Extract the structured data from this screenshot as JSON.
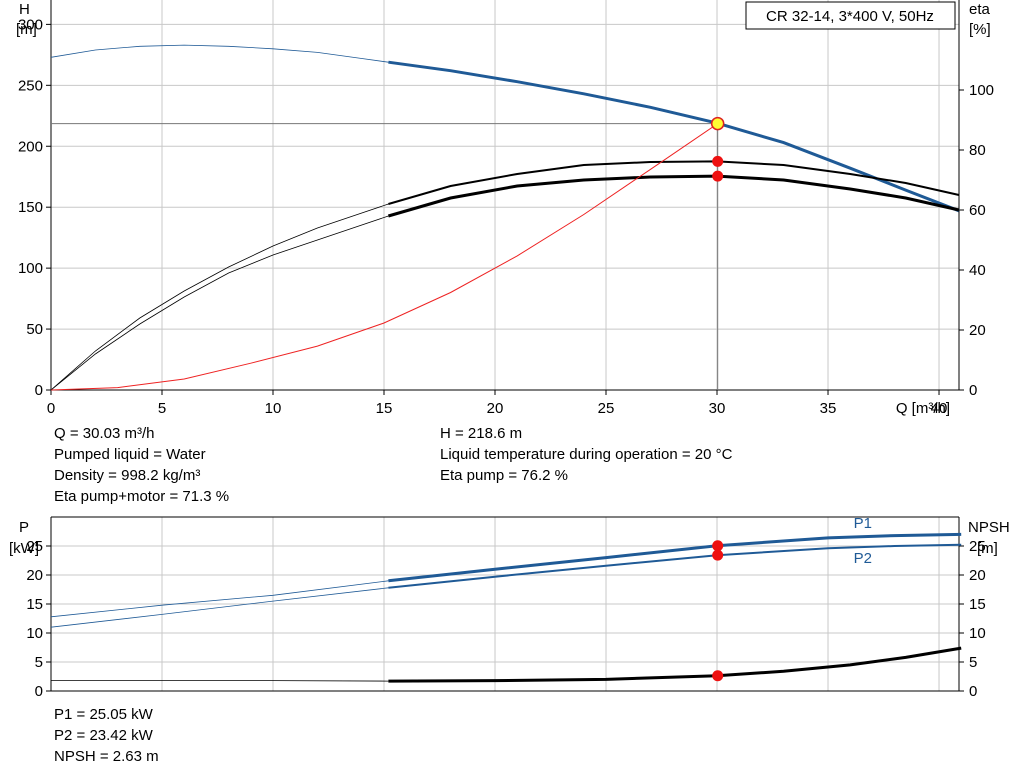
{
  "chart_data": [
    {
      "type": "line",
      "title": "CR 32-14, 3*400 V, 50Hz",
      "xlabel": "Q [m³/h]",
      "ylabel_left": [
        "H",
        "[m]"
      ],
      "ylabel_right": [
        "eta",
        "[%]"
      ],
      "xlim": [
        0,
        40.9
      ],
      "ylim_left": [
        0,
        320
      ],
      "ylim_right": [
        0,
        130
      ],
      "x_ticks": [
        "0",
        "5",
        "10",
        "15",
        "20",
        "25",
        "30",
        "35",
        "40"
      ],
      "y_left_ticks": [
        "0",
        "50",
        "100",
        "150",
        "200",
        "250",
        "300"
      ],
      "y_right_ticks": [
        "0",
        "20",
        "40",
        "60",
        "80",
        "100"
      ],
      "grid": true,
      "series": [
        {
          "key": "H",
          "axis": "left",
          "color": "#1f5a96",
          "x": [
            0,
            2,
            4,
            6,
            8,
            10,
            12,
            14,
            15.2,
            18,
            21,
            24,
            27,
            30,
            33,
            36,
            38.5,
            40.9
          ],
          "y": [
            273,
            279,
            282,
            283,
            282,
            280,
            277,
            272,
            269,
            262,
            253,
            243,
            232,
            219,
            203,
            182,
            164,
            147
          ]
        },
        {
          "key": "eta_pump",
          "axis": "right",
          "color": "#000000",
          "x": [
            0,
            2,
            4,
            6,
            8,
            10,
            12,
            14,
            15.2,
            18,
            21,
            24,
            27,
            30,
            33,
            36,
            38.5,
            40.9
          ],
          "y": [
            0,
            13,
            24,
            33,
            41,
            48,
            54,
            59,
            62,
            68,
            72,
            75,
            76,
            76.2,
            75,
            72,
            69,
            65
          ]
        },
        {
          "key": "eta_total",
          "axis": "right",
          "color": "#000000",
          "x": [
            0,
            2,
            4,
            6,
            8,
            10,
            12,
            14,
            15.2,
            18,
            21,
            24,
            27,
            30,
            33,
            36,
            38.5,
            40.9
          ],
          "y": [
            0,
            12,
            22,
            31,
            39,
            45,
            50,
            55,
            58,
            64,
            68,
            70,
            71,
            71.3,
            70,
            67,
            64,
            60
          ]
        },
        {
          "key": "system",
          "axis": "left",
          "color": "#ee2222",
          "x": [
            0,
            3,
            6,
            9,
            12,
            15,
            18,
            21,
            24,
            27,
            30.03
          ],
          "y": [
            0,
            2,
            9,
            22,
            36,
            55,
            80,
            110,
            144,
            181,
            218.6
          ]
        }
      ],
      "operating_point": {
        "x": 30.03,
        "h": 218.6,
        "eta_pump": 76.2,
        "eta_total": 71.3
      },
      "annotations": {
        "left": [
          "Q = 30.03 m³/h",
          "Pumped liquid = Water",
          "Density = 998.2 kg/m³",
          "Eta pump+motor = 71.3 %"
        ],
        "right": [
          "H = 218.6 m",
          "Liquid temperature during operation = 20 °C",
          "Eta pump = 76.2 %"
        ]
      }
    },
    {
      "type": "line",
      "xlim": [
        0,
        40.9
      ],
      "ylim": [
        0,
        30
      ],
      "ylabel_left": [
        "P",
        "[kW]"
      ],
      "ylabel_right": [
        "NPSH",
        "[m]"
      ],
      "y_left_ticks": [
        "0",
        "5",
        "10",
        "15",
        "20",
        "25"
      ],
      "y_right_ticks": [
        "0",
        "5",
        "10",
        "15",
        "20",
        "25"
      ],
      "grid": true,
      "series": [
        {
          "key": "P1",
          "name": "P1",
          "color": "#1f5a96",
          "x": [
            0,
            5,
            10,
            15.2,
            20,
            25,
            30,
            35,
            38,
            41
          ],
          "y": [
            12.8,
            14.8,
            16.5,
            19.0,
            21.0,
            23.0,
            25.05,
            26.4,
            26.8,
            27.0
          ]
        },
        {
          "key": "P2",
          "name": "P2",
          "color": "#1f5a96",
          "x": [
            0,
            5,
            10,
            15.2,
            20,
            25,
            30,
            35,
            38,
            41
          ],
          "y": [
            11.0,
            13.2,
            15.5,
            17.8,
            19.7,
            21.6,
            23.42,
            24.6,
            25.0,
            25.2
          ]
        },
        {
          "key": "NPSH",
          "name": "",
          "color": "#000000",
          "x": [
            0,
            5,
            10,
            15.2,
            20,
            25,
            30,
            33,
            36,
            38.5,
            41
          ],
          "y": [
            1.8,
            1.8,
            1.8,
            1.7,
            1.8,
            2.0,
            2.63,
            3.4,
            4.5,
            5.8,
            7.4
          ]
        }
      ],
      "operating_point": {
        "x": 30.03,
        "p1": 25.05,
        "p2": 23.42,
        "npsh": 2.63
      },
      "annotations": [
        "P1 = 25.05 kW",
        "P2 = 23.42 kW",
        "NPSH = 2.63 m"
      ]
    }
  ]
}
